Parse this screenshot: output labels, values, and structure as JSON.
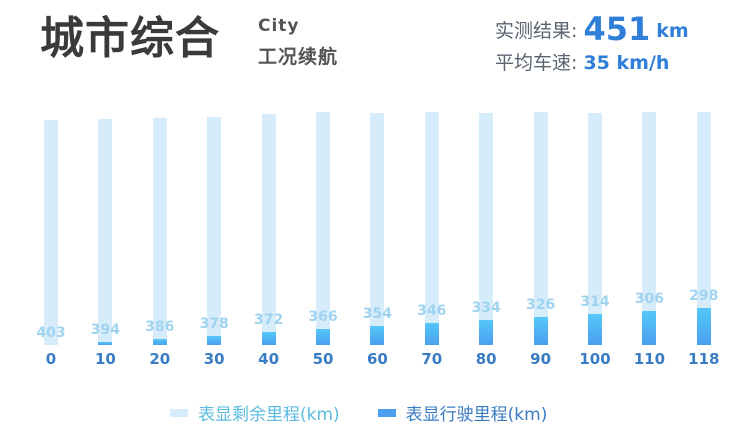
{
  "header": {
    "title_main": "城市综合",
    "title_en": "City",
    "title_sub": "工况续航"
  },
  "stats": {
    "measured_label": "实测结果:",
    "measured_value": "451",
    "measured_unit": "km",
    "avg_speed_label": "平均车速:",
    "avg_speed_value": "35 km/h"
  },
  "legend": {
    "remaining_label": "表显剩余里程(km)",
    "driven_label": "表显行驶里程(km)",
    "remaining_color": "#d6ecfb",
    "driven_color": "#4a9ff0"
  },
  "chart_data": {
    "type": "bar",
    "title": "城市综合 City 工况续航",
    "xlabel": "",
    "ylabel": "",
    "categories": [
      "0",
      "10",
      "20",
      "30",
      "40",
      "50",
      "60",
      "70",
      "80",
      "90",
      "100",
      "110",
      "118"
    ],
    "series": [
      {
        "name": "表显剩余里程(km)",
        "values": [
          403,
          394,
          386,
          378,
          372,
          366,
          354,
          346,
          334,
          326,
          314,
          306,
          298
        ]
      },
      {
        "name": "表显行驶里程(km)",
        "values": [
          0,
          10,
          20,
          30,
          40,
          50,
          60,
          70,
          80,
          90,
          100,
          110,
          118
        ]
      }
    ],
    "stacked": true,
    "grid": false,
    "legend_position": "bottom",
    "data_labels": "remaining values shown above driven bars"
  }
}
